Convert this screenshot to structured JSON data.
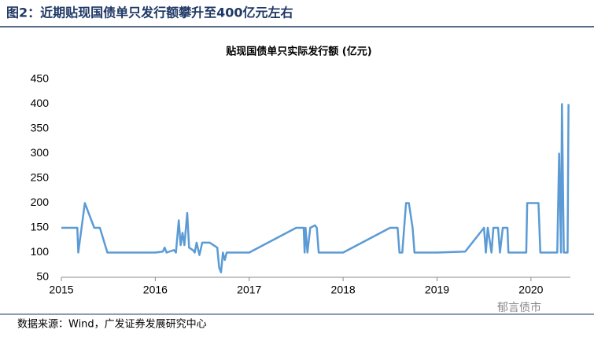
{
  "header": {
    "title": "图2：近期贴现国债单只发行额攀升至400亿元左右"
  },
  "chart_data": {
    "type": "line",
    "title": "贴现国债单只实际发行额 (亿元)",
    "x": [
      2015.0,
      2015.17,
      2015.18,
      2015.25,
      2015.35,
      2015.41,
      2015.49,
      2016.0,
      2016.08,
      2016.1,
      2016.12,
      2016.2,
      2016.22,
      2016.25,
      2016.27,
      2016.29,
      2016.31,
      2016.34,
      2016.36,
      2016.4,
      2016.42,
      2016.44,
      2016.47,
      2016.5,
      2016.53,
      2016.58,
      2016.66,
      2016.68,
      2016.7,
      2016.72,
      2016.74,
      2016.76,
      2017.0,
      2017.5,
      2017.58,
      2017.59,
      2017.6,
      2017.62,
      2017.65,
      2017.7,
      2017.72,
      2017.74,
      2018.0,
      2018.5,
      2018.58,
      2018.6,
      2018.63,
      2018.67,
      2018.7,
      2018.74,
      2018.76,
      2019.0,
      2019.3,
      2019.5,
      2019.52,
      2019.54,
      2019.58,
      2019.6,
      2019.65,
      2019.67,
      2019.7,
      2019.75,
      2019.76,
      2019.95,
      2019.96,
      2020.08,
      2020.1,
      2020.28,
      2020.3,
      2020.32,
      2020.33,
      2020.35,
      2020.39,
      2020.4
    ],
    "series": [
      {
        "color": "#5b9bd5",
        "values": [
          150,
          150,
          100,
          200,
          150,
          150,
          100,
          100,
          102,
          110,
          100,
          105,
          100,
          165,
          115,
          140,
          115,
          180,
          110,
          105,
          100,
          120,
          95,
          120,
          120,
          120,
          110,
          70,
          60,
          100,
          85,
          100,
          100,
          150,
          150,
          100,
          150,
          100,
          150,
          155,
          150,
          100,
          100,
          150,
          150,
          100,
          100,
          200,
          200,
          150,
          100,
          100,
          102,
          150,
          100,
          150,
          100,
          150,
          150,
          100,
          150,
          150,
          100,
          100,
          200,
          200,
          100,
          100,
          300,
          100,
          400,
          100,
          100,
          400
        ]
      }
    ],
    "xlim": [
      2015,
      2020.42
    ],
    "xticks": [
      2015,
      2016,
      2017,
      2018,
      2019,
      2020
    ],
    "ylim": [
      50,
      450
    ],
    "yticks": [
      50,
      100,
      150,
      200,
      250,
      300,
      350,
      400,
      450
    ]
  },
  "watermark": "郁言债市",
  "source": "数据来源：Wind，广发证券发展研究中心"
}
